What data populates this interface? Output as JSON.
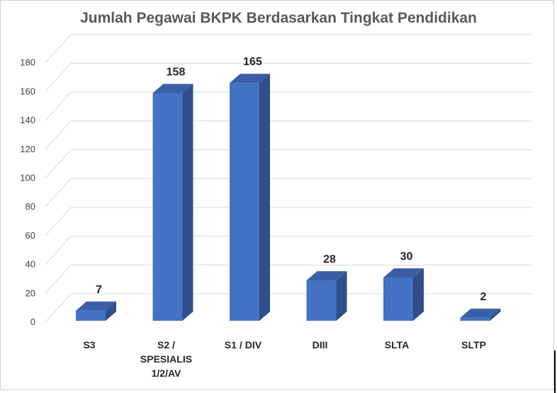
{
  "chart_data": {
    "type": "bar",
    "title": "Jumlah Pegawai BKPK Berdasarkan Tingkat Pendidikan",
    "categories": [
      "S3",
      "S2 / SPESIALIS 1/2/AV",
      "S1 / DIV",
      "DIII",
      "SLTA",
      "SLTP"
    ],
    "category_lines": [
      [
        "S3"
      ],
      [
        "S2 /",
        "SPESIALIS",
        "1/2/AV"
      ],
      [
        "S1 / DIV"
      ],
      [
        "DIII"
      ],
      [
        "SLTA"
      ],
      [
        "SLTP"
      ]
    ],
    "values": [
      7,
      158,
      165,
      28,
      30,
      2
    ],
    "ylim": [
      0,
      180
    ],
    "yticks": [
      0,
      20,
      40,
      60,
      80,
      100,
      120,
      140,
      160,
      180
    ],
    "xlabel": "",
    "ylabel": "",
    "grid": true,
    "style": "3d-column",
    "colors": {
      "front": "#4472C4",
      "side": "#2F4E8A",
      "top": "#3A5FA6",
      "grid": "#D9D9D9",
      "text": "#262626"
    }
  }
}
